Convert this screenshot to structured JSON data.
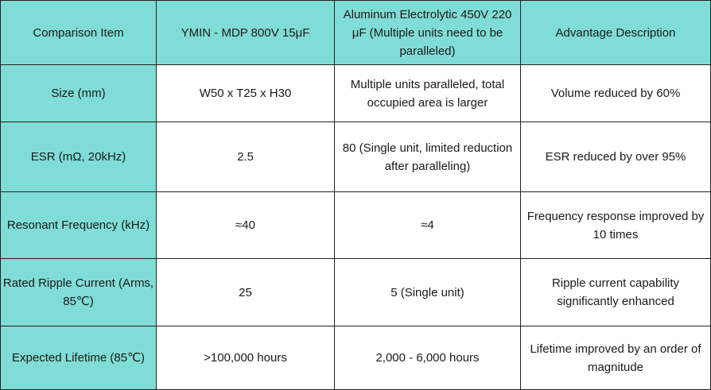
{
  "table": {
    "headers": [
      "Comparison Item",
      "YMIN - MDP 800V 15μF",
      "Aluminum Electrolytic 450V 220 μF (Multiple units need to be paralleled)",
      "Advantage Description"
    ],
    "rows": [
      [
        "Size (mm)",
        "W50 x T25 x H30",
        "Multiple units paralleled, total occupied area is larger",
        "Volume reduced by 60%"
      ],
      [
        "ESR (mΩ, 20kHz)",
        "2.5",
        "80 (Single unit, limited reduction after paralleling)",
        "ESR reduced by over 95%"
      ],
      [
        "Resonant Frequency (kHz)",
        "≈40",
        "≈4",
        "Frequency response improved by 10 times"
      ],
      [
        "Rated Ripple Current (Arms, 85℃)",
        "25",
        "5 (Single unit)",
        "Ripple current capability significantly enhanced"
      ],
      [
        "Expected Lifetime (85℃)",
        ">100,000 hours",
        "2,000 - 6,000 hours",
        "Lifetime improved by an order of magnitude"
      ]
    ]
  },
  "colors": {
    "header_fill": "#80dcd6",
    "body_fill": "#ffffff",
    "border": "#222222"
  }
}
